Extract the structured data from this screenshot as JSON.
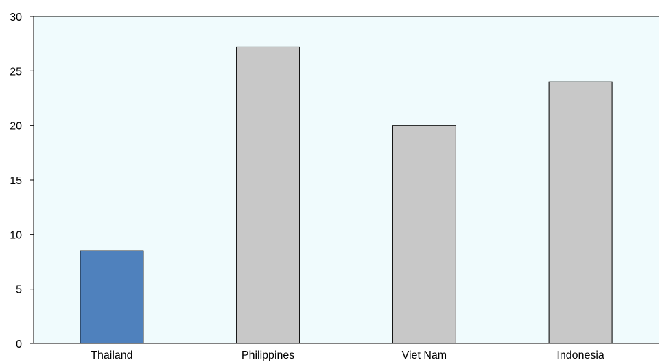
{
  "chart_data": {
    "type": "bar",
    "title": "",
    "xlabel": "",
    "ylabel": "",
    "categories": [
      "Thailand",
      "Philippines",
      "Viet Nam",
      "Indonesia"
    ],
    "values": [
      8.5,
      27.2,
      20.0,
      24.0
    ],
    "ylim": [
      0,
      30
    ],
    "yticks": [
      "0",
      "5",
      "10",
      "15",
      "20",
      "25",
      "30"
    ],
    "grid": false,
    "legend": "none",
    "colors": {
      "highlight": "#4f81bd",
      "default": "#c8c8c8",
      "plot_background": "#f0fbfd",
      "border": "#000000"
    },
    "highlight_category": "Thailand"
  }
}
